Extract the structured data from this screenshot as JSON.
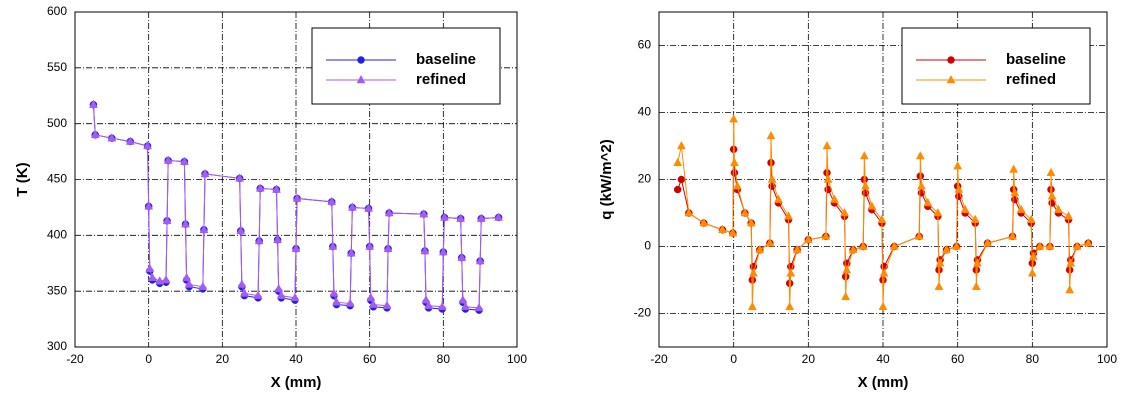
{
  "chart_data": [
    {
      "type": "line",
      "xlabel": "X (mm)",
      "ylabel": "T (K)",
      "xlim": [
        -20,
        100
      ],
      "ylim": [
        300,
        600
      ],
      "xticks": [
        -20,
        0,
        20,
        40,
        60,
        80,
        100
      ],
      "yticks": [
        300,
        350,
        400,
        450,
        500,
        550,
        600
      ],
      "grid": true,
      "legend": "upper right",
      "x": [
        -15,
        -14.5,
        -10,
        -5,
        -0.3,
        0,
        0.3,
        1,
        3,
        4.7,
        5,
        5.3,
        9.7,
        10,
        10.3,
        11,
        14.7,
        15,
        15.3,
        24.7,
        25,
        25.3,
        26,
        29.7,
        30,
        30.3,
        34.7,
        35,
        35.3,
        36,
        39.7,
        40,
        40.3,
        49.7,
        50,
        50.3,
        51,
        54.7,
        55,
        55.3,
        59.7,
        60,
        60.3,
        61,
        64.7,
        65,
        65.3,
        74.7,
        75,
        75.3,
        76,
        79.7,
        80,
        80.3,
        84.7,
        85,
        85.3,
        86,
        89.7,
        90,
        90.3,
        95
      ],
      "series": [
        {
          "name": "baseline",
          "color": "#2020e8",
          "marker": "circle",
          "values": [
            517,
            490,
            487,
            484,
            480,
            426,
            368,
            360,
            357,
            358,
            413,
            467,
            466,
            410,
            360,
            354,
            352,
            405,
            455,
            451,
            404,
            354,
            346,
            344,
            395,
            442,
            441,
            396,
            350,
            344,
            342,
            388,
            433,
            430,
            390,
            346,
            338,
            337,
            384,
            425,
            424,
            390,
            342,
            336,
            335,
            388,
            420,
            419,
            386,
            340,
            335,
            334,
            385,
            416,
            415,
            380,
            340,
            334,
            333,
            377,
            415,
            416
          ]
        },
        {
          "name": "refined",
          "color": "#a65cf0",
          "marker": "triangle",
          "values": [
            517,
            490,
            487,
            484,
            480,
            426,
            370,
            362,
            359,
            360,
            413,
            467,
            466,
            410,
            362,
            356,
            354,
            405,
            455,
            451,
            404,
            356,
            348,
            346,
            395,
            442,
            441,
            396,
            352,
            346,
            344,
            388,
            433,
            430,
            390,
            348,
            340,
            339,
            384,
            425,
            424,
            390,
            344,
            338,
            337,
            388,
            420,
            419,
            386,
            342,
            337,
            336,
            385,
            416,
            415,
            380,
            342,
            336,
            335,
            377,
            415,
            416
          ]
        }
      ]
    },
    {
      "type": "line",
      "xlabel": "X (mm)",
      "ylabel": "q (kW/m^2)",
      "xlim": [
        -20,
        100
      ],
      "ylim": [
        -30,
        70
      ],
      "xticks": [
        -20,
        0,
        20,
        40,
        60,
        80,
        100
      ],
      "yticks": [
        -20,
        0,
        20,
        40,
        60
      ],
      "grid": true,
      "legend": "upper right",
      "x": [
        -15,
        -14,
        -12,
        -8,
        -3,
        -0.2,
        0,
        0.2,
        1,
        3,
        4.7,
        5,
        5.3,
        7,
        9.7,
        10,
        10.3,
        12,
        14.7,
        15,
        15.3,
        17,
        20,
        24.7,
        25,
        25.3,
        27,
        29.7,
        30,
        30.3,
        32,
        34.7,
        35,
        35.3,
        37,
        39.7,
        40,
        40.3,
        43,
        49.7,
        50,
        50.3,
        52,
        54.7,
        55,
        55.3,
        57,
        59.7,
        60,
        60.3,
        62,
        64.7,
        65,
        65.3,
        68,
        74.7,
        75,
        75.3,
        77,
        79.7,
        80,
        80.3,
        82,
        84.7,
        85,
        85.3,
        87,
        89.7,
        90,
        90.3,
        92,
        95
      ],
      "series": [
        {
          "name": "baseline",
          "color": "#d00000",
          "marker": "circle",
          "values": [
            17,
            20,
            10,
            7,
            5,
            4,
            29,
            22,
            17,
            10,
            7,
            -10,
            -6,
            -1,
            1,
            25,
            18,
            13,
            8,
            -11,
            -6,
            -1,
            2,
            3,
            22,
            17,
            13,
            9,
            -9,
            -5,
            -1,
            0,
            20,
            16,
            11,
            7,
            -10,
            -6,
            0,
            3,
            21,
            16,
            12,
            9,
            -7,
            -4,
            -1,
            0,
            18,
            15,
            10,
            7,
            -7,
            -4,
            1,
            3,
            17,
            14,
            10,
            7,
            -5,
            -2,
            0,
            0,
            17,
            13,
            10,
            8,
            -7,
            -4,
            0,
            1
          ]
        },
        {
          "name": "refined",
          "color": "#ff8c00",
          "marker": "triangle",
          "values": [
            25,
            30,
            10,
            7,
            5,
            4,
            38,
            25,
            18,
            10,
            7,
            -18,
            -8,
            -1,
            1,
            33,
            20,
            14,
            9,
            -18,
            -8,
            -1,
            2,
            3,
            30,
            20,
            14,
            10,
            -15,
            -7,
            -1,
            0,
            27,
            18,
            12,
            8,
            -18,
            -8,
            0,
            3,
            27,
            18,
            13,
            10,
            -12,
            -5,
            -1,
            0,
            24,
            17,
            11,
            8,
            -12,
            -5,
            1,
            3,
            23,
            16,
            11,
            8,
            -8,
            -3,
            0,
            0,
            22,
            15,
            11,
            9,
            -13,
            -5,
            0,
            1
          ]
        }
      ]
    }
  ]
}
